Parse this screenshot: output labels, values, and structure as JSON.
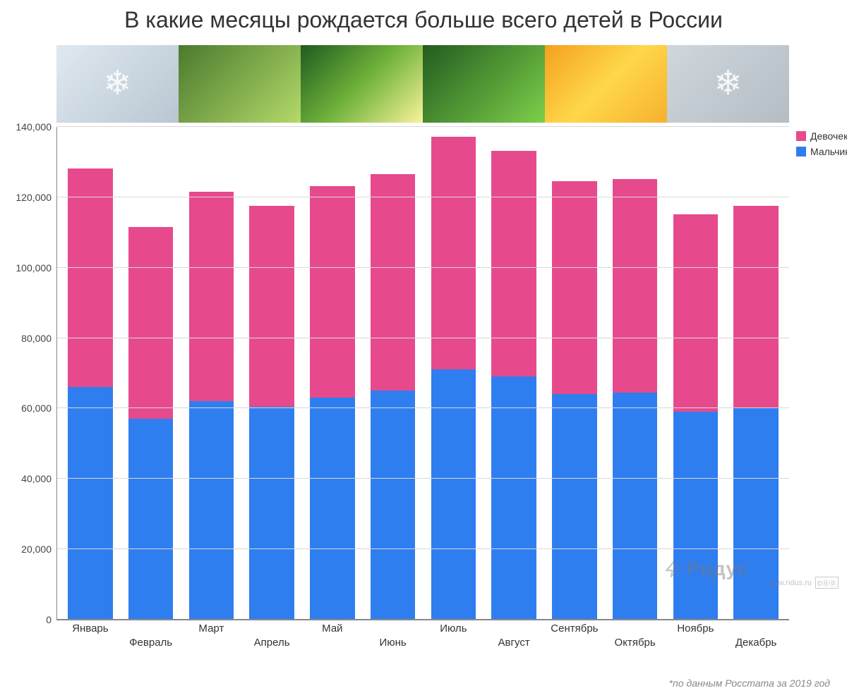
{
  "title": "В какие месяцы рождается больше всего детей в России",
  "footnote": "*по данным Росстата за 2019 год",
  "watermark": "Ридус",
  "watermark_url": "www.ridus.ru",
  "cc_label": "©⓪⓪",
  "chart": {
    "type": "stacked-bar",
    "background_color": "#ffffff",
    "grid_color": "#d9d9d9",
    "axis_color": "#888888",
    "title_fontsize": 32,
    "label_fontsize": 15,
    "tick_fontsize": 14,
    "ylim": [
      0,
      140000
    ],
    "ytick_step": 20000,
    "yticks": [
      {
        "v": 0,
        "label": "0"
      },
      {
        "v": 20000,
        "label": "20,000"
      },
      {
        "v": 40000,
        "label": "40,000"
      },
      {
        "v": 60000,
        "label": "60,000"
      },
      {
        "v": 80000,
        "label": "80,000"
      },
      {
        "v": 100000,
        "label": "100,000"
      },
      {
        "v": 120000,
        "label": "120,000"
      },
      {
        "v": 140000,
        "label": "140,000"
      }
    ],
    "categories": [
      "Январь",
      "Февраль",
      "Март",
      "Апрель",
      "Май",
      "Июнь",
      "Июль",
      "Август",
      "Сентябрь",
      "Октябрь",
      "Ноябрь",
      "Декабрь"
    ],
    "label_row": [
      1,
      2,
      1,
      2,
      1,
      2,
      1,
      2,
      1,
      2,
      1,
      2
    ],
    "series": [
      {
        "name": "Мальчиков",
        "color": "#2f7ef0",
        "values": [
          66000,
          57000,
          62000,
          60500,
          63000,
          65000,
          71000,
          69000,
          64000,
          64500,
          59000,
          60000
        ]
      },
      {
        "name": "Девочек",
        "color": "#e64a8c",
        "values": [
          62000,
          54500,
          59500,
          57000,
          60000,
          61500,
          66000,
          64000,
          60500,
          60500,
          56000,
          57500
        ]
      }
    ],
    "bar_width": 0.74,
    "legend": {
      "items": [
        {
          "label": "Девочек",
          "color": "#e64a8c"
        },
        {
          "label": "Мальчиков",
          "color": "#2f7ef0"
        }
      ]
    }
  }
}
